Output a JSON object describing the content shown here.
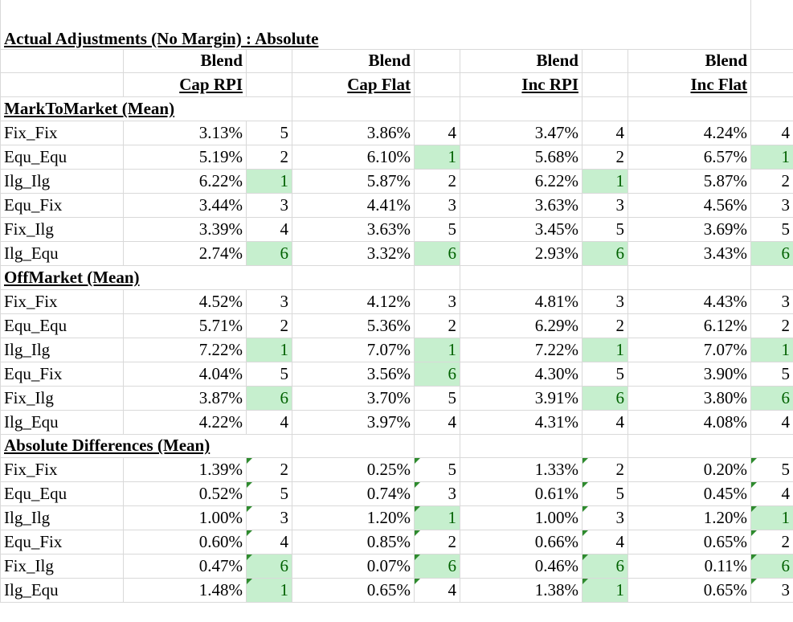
{
  "title": "Actual Adjustments (No Margin) : Absolute",
  "columns": [
    {
      "line1": "Blend",
      "line2": "Cap RPI"
    },
    {
      "line1": "Blend",
      "line2": "Cap Flat"
    },
    {
      "line1": "Blend",
      "line2": "Inc RPI"
    },
    {
      "line1": "Blend",
      "line2": "Inc Flat"
    }
  ],
  "sections": [
    {
      "title": "MarkToMarket (Mean)",
      "rows": [
        {
          "label": "Fix_Fix",
          "cells": [
            {
              "v": "3.13%",
              "r": "5"
            },
            {
              "v": "3.86%",
              "r": "4"
            },
            {
              "v": "3.47%",
              "r": "4"
            },
            {
              "v": "4.24%",
              "r": "4"
            }
          ]
        },
        {
          "label": "Equ_Equ",
          "cells": [
            {
              "v": "5.19%",
              "r": "2"
            },
            {
              "v": "6.10%",
              "r": "1"
            },
            {
              "v": "5.68%",
              "r": "2"
            },
            {
              "v": "6.57%",
              "r": "1"
            }
          ]
        },
        {
          "label": "Ilg_Ilg",
          "cells": [
            {
              "v": "6.22%",
              "r": "1"
            },
            {
              "v": "5.87%",
              "r": "2"
            },
            {
              "v": "6.22%",
              "r": "1"
            },
            {
              "v": "5.87%",
              "r": "2"
            }
          ]
        },
        {
          "label": "Equ_Fix",
          "cells": [
            {
              "v": "3.44%",
              "r": "3"
            },
            {
              "v": "4.41%",
              "r": "3"
            },
            {
              "v": "3.63%",
              "r": "3"
            },
            {
              "v": "4.56%",
              "r": "3"
            }
          ]
        },
        {
          "label": "Fix_Ilg",
          "cells": [
            {
              "v": "3.39%",
              "r": "4"
            },
            {
              "v": "3.63%",
              "r": "5"
            },
            {
              "v": "3.45%",
              "r": "5"
            },
            {
              "v": "3.69%",
              "r": "5"
            }
          ]
        },
        {
          "label": "Ilg_Equ",
          "cells": [
            {
              "v": "2.74%",
              "r": "6"
            },
            {
              "v": "3.32%",
              "r": "6"
            },
            {
              "v": "2.93%",
              "r": "6"
            },
            {
              "v": "3.43%",
              "r": "6"
            }
          ]
        }
      ]
    },
    {
      "title": "OffMarket (Mean)",
      "rows": [
        {
          "label": "Fix_Fix",
          "cells": [
            {
              "v": "4.52%",
              "r": "3"
            },
            {
              "v": "4.12%",
              "r": "3"
            },
            {
              "v": "4.81%",
              "r": "3"
            },
            {
              "v": "4.43%",
              "r": "3"
            }
          ]
        },
        {
          "label": "Equ_Equ",
          "cells": [
            {
              "v": "5.71%",
              "r": "2"
            },
            {
              "v": "5.36%",
              "r": "2"
            },
            {
              "v": "6.29%",
              "r": "2"
            },
            {
              "v": "6.12%",
              "r": "2"
            }
          ]
        },
        {
          "label": "Ilg_Ilg",
          "cells": [
            {
              "v": "7.22%",
              "r": "1"
            },
            {
              "v": "7.07%",
              "r": "1"
            },
            {
              "v": "7.22%",
              "r": "1"
            },
            {
              "v": "7.07%",
              "r": "1"
            }
          ]
        },
        {
          "label": "Equ_Fix",
          "cells": [
            {
              "v": "4.04%",
              "r": "5"
            },
            {
              "v": "3.56%",
              "r": "6"
            },
            {
              "v": "4.30%",
              "r": "5"
            },
            {
              "v": "3.90%",
              "r": "5"
            }
          ]
        },
        {
          "label": "Fix_Ilg",
          "cells": [
            {
              "v": "3.87%",
              "r": "6"
            },
            {
              "v": "3.70%",
              "r": "5"
            },
            {
              "v": "3.91%",
              "r": "6"
            },
            {
              "v": "3.80%",
              "r": "6"
            }
          ]
        },
        {
          "label": "Ilg_Equ",
          "cells": [
            {
              "v": "4.22%",
              "r": "4"
            },
            {
              "v": "3.97%",
              "r": "4"
            },
            {
              "v": "4.31%",
              "r": "4"
            },
            {
              "v": "4.08%",
              "r": "4"
            }
          ]
        }
      ]
    },
    {
      "title": "Absolute Differences (Mean)",
      "rows": [
        {
          "label": "Fix_Fix",
          "cells": [
            {
              "v": "1.39%",
              "r": "2"
            },
            {
              "v": "0.25%",
              "r": "5"
            },
            {
              "v": "1.33%",
              "r": "2"
            },
            {
              "v": "0.20%",
              "r": "5"
            }
          ]
        },
        {
          "label": "Equ_Equ",
          "cells": [
            {
              "v": "0.52%",
              "r": "5"
            },
            {
              "v": "0.74%",
              "r": "3"
            },
            {
              "v": "0.61%",
              "r": "5"
            },
            {
              "v": "0.45%",
              "r": "4"
            }
          ]
        },
        {
          "label": "Ilg_Ilg",
          "cells": [
            {
              "v": "1.00%",
              "r": "3"
            },
            {
              "v": "1.20%",
              "r": "1"
            },
            {
              "v": "1.00%",
              "r": "3"
            },
            {
              "v": "1.20%",
              "r": "1"
            }
          ]
        },
        {
          "label": "Equ_Fix",
          "cells": [
            {
              "v": "0.60%",
              "r": "4"
            },
            {
              "v": "0.85%",
              "r": "2"
            },
            {
              "v": "0.66%",
              "r": "4"
            },
            {
              "v": "0.65%",
              "r": "2"
            }
          ]
        },
        {
          "label": "Fix_Ilg",
          "cells": [
            {
              "v": "0.47%",
              "r": "6"
            },
            {
              "v": "0.07%",
              "r": "6"
            },
            {
              "v": "0.46%",
              "r": "6"
            },
            {
              "v": "0.11%",
              "r": "6"
            }
          ]
        },
        {
          "label": "Ilg_Equ",
          "cells": [
            {
              "v": "1.48%",
              "r": "1"
            },
            {
              "v": "0.65%",
              "r": "4"
            },
            {
              "v": "1.38%",
              "r": "1"
            },
            {
              "v": "0.65%",
              "r": "3"
            }
          ]
        }
      ]
    }
  ],
  "colors": {
    "highlight_fill": "#c6efce",
    "highlight_text": "#006100",
    "gridline": "#d9d9d9",
    "comment_flag": "#2e8b2e"
  }
}
